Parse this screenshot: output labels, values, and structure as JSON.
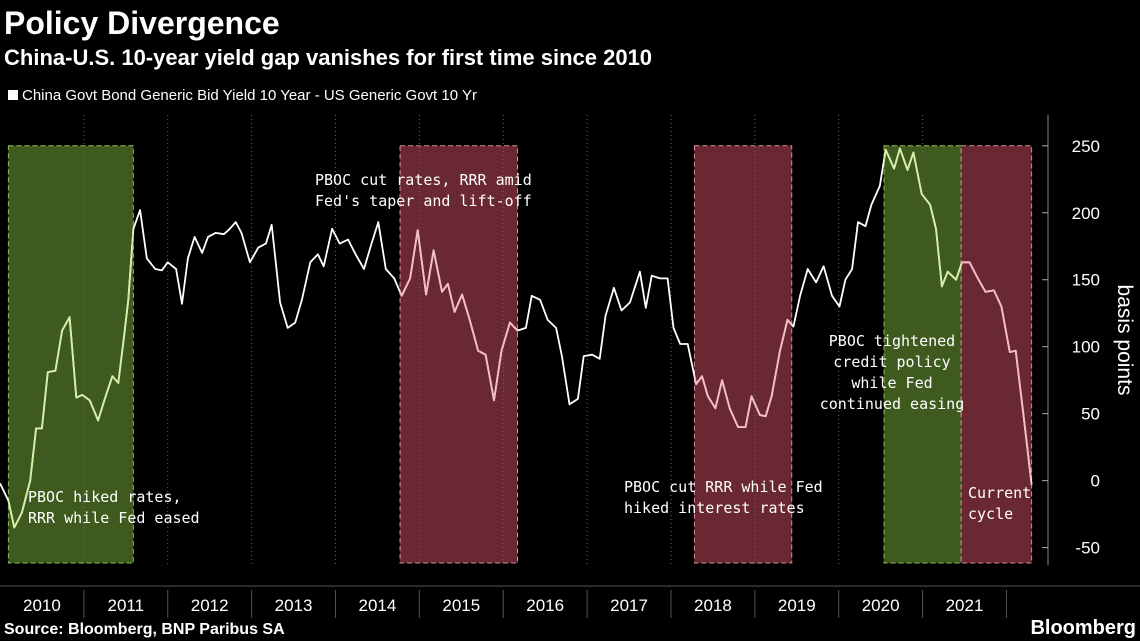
{
  "chart_data": {
    "type": "line",
    "title": "Policy Divergence",
    "subtitle": "China-U.S. 10-year yield gap vanishes for first time since 2010",
    "y_label": "basis points",
    "source": "Source: Bloomberg, BNP Paribus SA",
    "brand": "Bloomberg",
    "xlim": [
      2010,
      2022.4
    ],
    "ylim": [
      -63,
      273
    ],
    "xticks": [
      2010,
      2011,
      2012,
      2013,
      2014,
      2015,
      2016,
      2017,
      2018,
      2019,
      2020,
      2021
    ],
    "yticks": [
      -50,
      0,
      50,
      100,
      150,
      200,
      250
    ],
    "series": [
      {
        "name": "China Govt Bond Generic Bid Yield 10 Year - US Generic Govt 10 Yr",
        "color": "#ffffff",
        "x": [
          2010.0,
          2010.1,
          2010.17,
          2010.26,
          2010.36,
          2010.43,
          2010.5,
          2010.57,
          2010.66,
          2010.74,
          2010.83,
          2010.91,
          2010.98,
          2011.07,
          2011.17,
          2011.25,
          2011.34,
          2011.41,
          2011.48,
          2011.53,
          2011.59,
          2011.67,
          2011.75,
          2011.85,
          2011.93,
          2012.0,
          2012.1,
          2012.17,
          2012.24,
          2012.32,
          2012.41,
          2012.48,
          2012.57,
          2012.67,
          2012.74,
          2012.81,
          2012.88,
          2012.98,
          2013.08,
          2013.17,
          2013.24,
          2013.34,
          2013.43,
          2013.52,
          2013.6,
          2013.7,
          2013.79,
          2013.86,
          2013.96,
          2014.05,
          2014.15,
          2014.24,
          2014.34,
          2014.43,
          2014.51,
          2014.6,
          2014.7,
          2014.79,
          2014.89,
          2014.98,
          2015.08,
          2015.17,
          2015.27,
          2015.34,
          2015.42,
          2015.51,
          2015.6,
          2015.7,
          2015.79,
          2015.89,
          2015.98,
          2016.08,
          2016.17,
          2016.27,
          2016.34,
          2016.44,
          2016.53,
          2016.63,
          2016.7,
          2016.79,
          2016.89,
          2016.96,
          2017.06,
          2017.15,
          2017.22,
          2017.32,
          2017.41,
          2017.51,
          2017.63,
          2017.7,
          2017.77,
          2017.87,
          2017.96,
          2018.03,
          2018.11,
          2018.2,
          2018.3,
          2018.37,
          2018.44,
          2018.53,
          2018.61,
          2018.7,
          2018.8,
          2018.89,
          2018.96,
          2019.06,
          2019.13,
          2019.2,
          2019.3,
          2019.39,
          2019.46,
          2019.54,
          2019.63,
          2019.73,
          2019.82,
          2019.92,
          2020.01,
          2020.08,
          2020.16,
          2020.23,
          2020.32,
          2020.39,
          2020.49,
          2020.56,
          2020.66,
          2020.73,
          2020.82,
          2020.89,
          2020.99,
          2021.09,
          2021.16,
          2021.23,
          2021.3,
          2021.4,
          2021.47,
          2021.56,
          2021.66,
          2021.75,
          2021.85,
          2021.94,
          2022.04,
          2022.11,
          2022.21,
          2022.3
        ],
        "values": [
          -2,
          -15,
          -35,
          -24,
          0,
          39,
          39,
          81,
          82,
          112,
          122,
          62,
          64,
          60,
          45,
          61,
          78,
          73,
          108,
          135,
          188,
          202,
          166,
          158,
          157,
          163,
          158,
          132,
          166,
          182,
          170,
          182,
          185,
          184,
          188,
          193,
          185,
          163,
          174,
          177,
          191,
          133,
          114,
          118,
          135,
          163,
          169,
          160,
          188,
          177,
          180,
          169,
          158,
          177,
          193,
          158,
          151,
          138,
          151,
          187,
          139,
          172,
          141,
          147,
          126,
          139,
          120,
          97,
          94,
          60,
          97,
          118,
          112,
          114,
          138,
          135,
          120,
          114,
          93,
          57,
          61,
          93,
          94,
          91,
          123,
          144,
          127,
          133,
          156,
          129,
          153,
          151,
          151,
          114,
          102,
          102,
          72,
          78,
          63,
          54,
          75,
          54,
          40,
          40,
          63,
          49,
          48,
          63,
          97,
          120,
          115,
          138,
          158,
          148,
          160,
          138,
          130,
          150,
          158,
          193,
          190,
          206,
          220,
          247,
          233,
          248,
          232,
          245,
          214,
          206,
          188,
          145,
          156,
          150,
          163,
          163,
          151,
          141,
          142,
          130,
          96,
          97,
          45,
          -3
        ]
      }
    ],
    "regions": [
      {
        "x0": 2010.1,
        "x1": 2011.59,
        "color": "#3f5a1f",
        "edge": "#8fb75a",
        "line_color": "#d4f0a4"
      },
      {
        "x0": 2014.77,
        "x1": 2016.17,
        "color": "#6a2832",
        "edge": "#d98a96",
        "line_color": "#f4bcc6"
      },
      {
        "x0": 2018.28,
        "x1": 2019.44,
        "color": "#6a2832",
        "edge": "#d98a96",
        "line_color": "#f4bcc6"
      },
      {
        "x0": 2020.54,
        "x1": 2021.46,
        "color": "#3f5a1f",
        "edge": "#8fb75a",
        "line_color": "#d4f0a4"
      },
      {
        "x0": 2021.46,
        "x1": 2022.3,
        "color": "#6a2832",
        "edge": "#d98a96",
        "line_color": "#f4bcc6"
      }
    ],
    "annotations": [
      {
        "lines": [
          "PBOC hiked rates,",
          "RRR while Fed eased"
        ]
      },
      {
        "lines": [
          "PBOC cut rates, RRR amid",
          "Fed's taper and lift-off"
        ]
      },
      {
        "lines": [
          "PBOC cut RRR while Fed",
          "hiked interest rates"
        ]
      },
      {
        "lines": [
          "PBOC tightened",
          "credit policy",
          "while Fed",
          "continued easing"
        ]
      },
      {
        "lines": [
          "Current",
          "cycle"
        ]
      }
    ]
  }
}
